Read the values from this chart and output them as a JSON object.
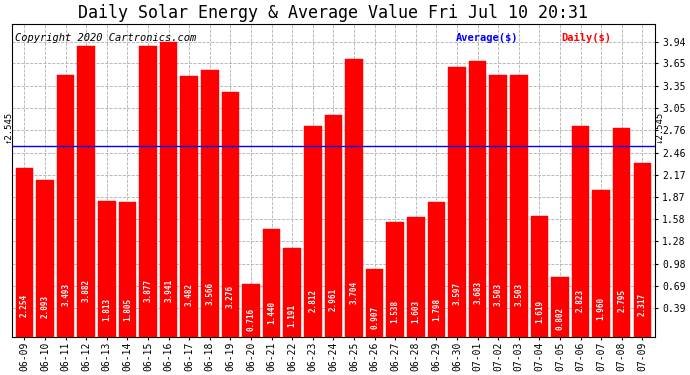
{
  "title": "Daily Solar Energy & Average Value Fri Jul 10 20:31",
  "copyright": "Copyright 2020 Cartronics.com",
  "average_label": "Average($)",
  "daily_label": "Daily($)",
  "average_value": 2.545,
  "categories": [
    "06-09",
    "06-10",
    "06-11",
    "06-12",
    "06-13",
    "06-14",
    "06-15",
    "06-16",
    "06-17",
    "06-18",
    "06-19",
    "06-20",
    "06-21",
    "06-22",
    "06-23",
    "06-24",
    "06-25",
    "06-26",
    "06-27",
    "06-28",
    "06-29",
    "06-30",
    "07-01",
    "07-02",
    "07-03",
    "07-04",
    "07-05",
    "07-06",
    "07-07",
    "07-08",
    "07-09"
  ],
  "values": [
    2.254,
    2.093,
    3.493,
    3.882,
    1.813,
    1.805,
    3.877,
    3.941,
    3.482,
    3.566,
    3.276,
    0.716,
    1.44,
    1.191,
    2.812,
    2.961,
    3.704,
    0.907,
    1.538,
    1.603,
    1.798,
    3.597,
    3.683,
    3.503,
    3.503,
    1.619,
    0.802,
    2.823,
    1.96,
    2.795,
    2.317
  ],
  "bar_color": "#ff0000",
  "avg_line_color": "#0000ff",
  "grid_color": "#b0b0b0",
  "background_color": "#ffffff",
  "title_fontsize": 12,
  "copyright_fontsize": 7.5,
  "bar_label_fontsize": 5.5,
  "tick_label_fontsize": 7,
  "ylim_min": 0.0,
  "ylim_max": 4.18,
  "yticks": [
    0.39,
    0.69,
    0.98,
    1.28,
    1.58,
    1.87,
    2.17,
    2.46,
    2.76,
    3.05,
    3.35,
    3.65,
    3.94
  ]
}
